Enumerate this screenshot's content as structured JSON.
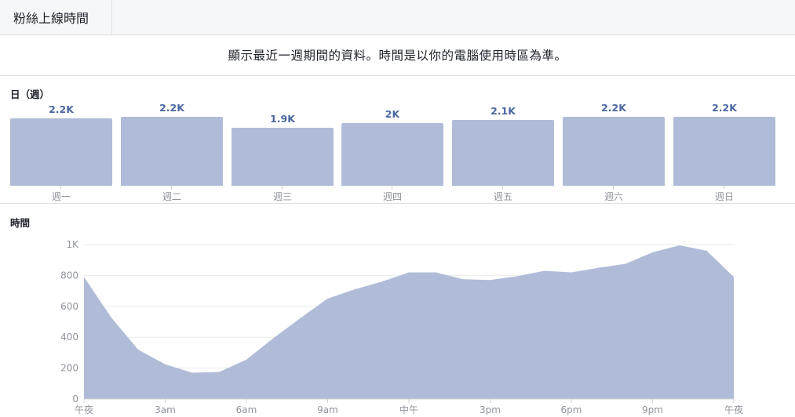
{
  "tab": {
    "label": "粉絲上線時間"
  },
  "notice": "顯示最近一週期間的資料。時間是以你的電腦使用時區為準。",
  "day_section": {
    "title": "日（週）"
  },
  "hour_section": {
    "title": "時間"
  },
  "colors": {
    "fill": "#b0bcd7",
    "value_text": "#4b67a1",
    "axis_text": "#90949c",
    "grid": "#e9ebee"
  },
  "chart_data": [
    {
      "type": "bar",
      "categories": [
        "週一",
        "週二",
        "週三",
        "週四",
        "週五",
        "週六",
        "週日"
      ],
      "values": [
        2200,
        2250,
        1900,
        2050,
        2150,
        2250,
        2250
      ],
      "value_labels": [
        "2.2K",
        "2.2K",
        "1.9K",
        "2K",
        "2.1K",
        "2.2K",
        "2.2K"
      ],
      "title": "日（週）"
    },
    {
      "type": "area",
      "title": "時間",
      "x": [
        0,
        1,
        2,
        3,
        4,
        5,
        6,
        7,
        8,
        9,
        10,
        11,
        12,
        13,
        14,
        15,
        16,
        17,
        18,
        19,
        20,
        21,
        22,
        23,
        24
      ],
      "values": [
        790,
        530,
        320,
        225,
        170,
        175,
        255,
        395,
        525,
        650,
        710,
        760,
        820,
        820,
        775,
        770,
        795,
        830,
        820,
        850,
        875,
        950,
        995,
        960,
        790
      ],
      "x_tick_labels": [
        "午夜",
        "3am",
        "6am",
        "9am",
        "中午",
        "3pm",
        "6pm",
        "9pm",
        "午夜"
      ],
      "x_tick_positions": [
        0,
        3,
        6,
        9,
        12,
        15,
        18,
        21,
        24
      ],
      "y_tick_labels": [
        "0",
        "200",
        "400",
        "600",
        "800",
        "1K"
      ],
      "y_tick_values": [
        0,
        200,
        400,
        600,
        800,
        1000
      ],
      "ylim": [
        0,
        1000
      ],
      "grid": true
    }
  ]
}
